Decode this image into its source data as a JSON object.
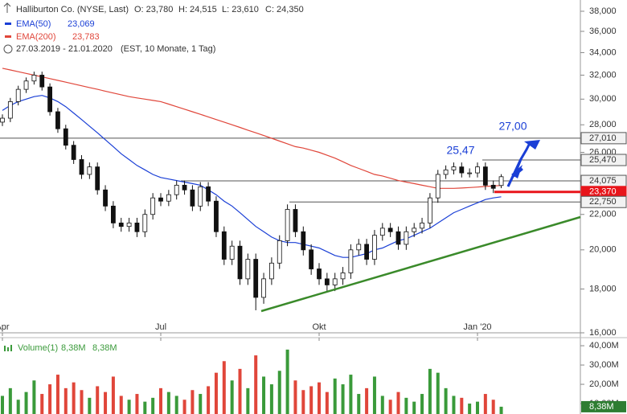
{
  "chart_data": [
    {
      "type": "candlestick",
      "title": "Halliburton Co. (NYSE, Last)",
      "info": [
        "O: 23,780",
        "H: 24,515",
        "L: 23,610",
        "C: 24,350"
      ],
      "period": "27.03.2019 - 21.01.2020",
      "period_note": "(EST, 10 Monate, 1 Tag)",
      "categories": [
        "Apr",
        null,
        null,
        null,
        null,
        null,
        null,
        null,
        null,
        null,
        null,
        null,
        null,
        null,
        null,
        null,
        null,
        null,
        null,
        null,
        "Jul",
        null,
        null,
        null,
        null,
        null,
        null,
        null,
        null,
        null,
        null,
        null,
        null,
        null,
        null,
        null,
        null,
        null,
        null,
        null,
        "Okt",
        null,
        null,
        null,
        null,
        null,
        null,
        null,
        null,
        null,
        null,
        null,
        null,
        null,
        null,
        null,
        null,
        null,
        null,
        null,
        "Jan '20",
        null,
        null,
        null
      ],
      "open": [
        28200,
        28500,
        29800,
        30800,
        31500,
        32000,
        31000,
        29000,
        27700,
        26500,
        25500,
        24500,
        25000,
        23500,
        22500,
        21500,
        21300,
        21500,
        21000,
        22000,
        23000,
        22800,
        23200,
        23800,
        23500,
        22500,
        23700,
        22800,
        21000,
        19500,
        20200,
        18500,
        19500,
        17600,
        18500,
        19300,
        20500,
        22300,
        21000,
        20000,
        19000,
        18500,
        18200,
        18500,
        18800,
        20000,
        20300,
        19500,
        20800,
        21200,
        21000,
        20300,
        21000,
        21200,
        21500,
        23000,
        24500,
        24800,
        25000,
        24600,
        24600,
        25000,
        23800,
        23780
      ],
      "high": [
        28800,
        30100,
        31100,
        31800,
        32300,
        32300,
        31300,
        29300,
        28000,
        26800,
        25800,
        25300,
        25300,
        23800,
        22800,
        21800,
        21800,
        21800,
        22300,
        23300,
        23300,
        23500,
        24100,
        24100,
        23800,
        24000,
        24000,
        23100,
        21300,
        20500,
        20500,
        19800,
        19800,
        18800,
        19600,
        20800,
        22600,
        22600,
        21300,
        20300,
        19300,
        18800,
        18800,
        19100,
        20300,
        20600,
        20600,
        21100,
        21500,
        21500,
        21300,
        21300,
        21500,
        21800,
        23300,
        24800,
        25100,
        25300,
        25300,
        24900,
        25300,
        25300,
        24100,
        24515
      ],
      "low": [
        27900,
        28200,
        29500,
        30500,
        31200,
        30700,
        28700,
        27400,
        26200,
        25200,
        24200,
        24200,
        23200,
        22200,
        21200,
        21000,
        21000,
        20700,
        20700,
        21700,
        22500,
        22500,
        22900,
        23200,
        22200,
        22200,
        22500,
        20700,
        19200,
        19200,
        18200,
        18200,
        17000,
        17300,
        18200,
        19000,
        20200,
        20700,
        19700,
        18700,
        18200,
        17900,
        17900,
        18200,
        18500,
        19700,
        19200,
        19200,
        20500,
        20700,
        20000,
        20000,
        20700,
        20900,
        21200,
        22700,
        24200,
        24500,
        24300,
        24300,
        24300,
        23500,
        23300,
        23610
      ],
      "close": [
        28500,
        29800,
        30800,
        31500,
        32000,
        31000,
        29000,
        27700,
        26500,
        25500,
        24500,
        25000,
        23500,
        22500,
        21500,
        21300,
        21500,
        21000,
        22000,
        23000,
        22800,
        23200,
        23800,
        23500,
        22500,
        23700,
        22800,
        21000,
        19500,
        20200,
        18500,
        19500,
        17600,
        18500,
        19300,
        20500,
        22300,
        21000,
        20000,
        19000,
        18500,
        18200,
        18500,
        18800,
        20000,
        20300,
        19500,
        20800,
        21200,
        21000,
        20300,
        21000,
        21200,
        21500,
        23000,
        24500,
        24800,
        25000,
        24600,
        24600,
        25000,
        23800,
        23600,
        24350
      ],
      "series": [
        {
          "name": "EMA(50)",
          "color": "#1a3fd6",
          "value_label": "23,069",
          "values": [
            29100,
            29500,
            29800,
            30000,
            30200,
            30300,
            30100,
            29800,
            29400,
            28900,
            28400,
            27900,
            27400,
            26900,
            26400,
            25900,
            25500,
            25100,
            24800,
            24500,
            24300,
            24200,
            24100,
            24000,
            23900,
            23800,
            23500,
            23200,
            22800,
            22500,
            22100,
            21700,
            21300,
            21000,
            20700,
            20500,
            20400,
            20400,
            20300,
            20200,
            20100,
            19900,
            19700,
            19600,
            19600,
            19700,
            19800,
            20000,
            20100,
            20300,
            20500,
            20600,
            20800,
            21000,
            21200,
            21500,
            21800,
            22100,
            22300,
            22500,
            22700,
            22900,
            23000,
            23069
          ]
        },
        {
          "name": "EMA(200)",
          "color": "#e0463a",
          "value_label": "23,783",
          "values": [
            32600,
            32450,
            32300,
            32150,
            32000,
            31850,
            31700,
            31550,
            31400,
            31250,
            31100,
            30950,
            30800,
            30650,
            30500,
            30350,
            30200,
            30100,
            30000,
            29900,
            29800,
            29600,
            29400,
            29200,
            29000,
            28800,
            28600,
            28400,
            28200,
            28000,
            27800,
            27600,
            27400,
            27200,
            27000,
            26800,
            26600,
            26400,
            26300,
            26150,
            26000,
            25800,
            25600,
            25350,
            25100,
            24900,
            24700,
            24500,
            24400,
            24250,
            24100,
            24000,
            23900,
            23800,
            23700,
            23600,
            23600,
            23600,
            23620,
            23650,
            23680,
            23720,
            23750,
            23783
          ]
        }
      ],
      "levels": [
        {
          "value": 27010,
          "label": "27,010",
          "color": "#555555"
        },
        {
          "value": 25470,
          "label": "25,470",
          "color": "#555555"
        },
        {
          "value": 24075,
          "label": "24,075",
          "color": "#555555"
        },
        {
          "value": 23370,
          "label": "23,370",
          "color": "#e8151b"
        },
        {
          "value": 22750,
          "label": "22,750",
          "color": "#555555"
        }
      ],
      "annotations": [
        "25,47",
        "27,00"
      ],
      "log_scale": true,
      "ylim": [
        16000,
        38000
      ],
      "yticks": [
        {
          "value": 16000,
          "label": "16,000"
        },
        {
          "value": 18000,
          "label": "18,000"
        },
        {
          "value": 20000,
          "label": "20,000"
        },
        {
          "value": 22000,
          "label": "22,000"
        },
        {
          "value": 24000,
          "label": "24,000"
        },
        {
          "value": 26000,
          "label": "26,000"
        },
        {
          "value": 28000,
          "label": "28,000"
        },
        {
          "value": 30000,
          "label": "30,000"
        },
        {
          "value": 32000,
          "label": "32,000"
        },
        {
          "value": 34000,
          "label": "34,000"
        },
        {
          "value": 36000,
          "label": "36,000"
        },
        {
          "value": 38000,
          "label": "38,000"
        }
      ]
    },
    {
      "type": "bar",
      "title": "Volume(1)",
      "info": [
        "8,38M",
        "8,38M"
      ],
      "last_label": "8,38M",
      "up_color": "#3a9a3a",
      "down_color": "#e0463a",
      "values": [
        14,
        18,
        12,
        16,
        22,
        15,
        20,
        25,
        18,
        21,
        17,
        13,
        19,
        16,
        24,
        14,
        12,
        15,
        11,
        13,
        18,
        16,
        14,
        12,
        17,
        15,
        19,
        26,
        32,
        22,
        28,
        18,
        35,
        24,
        20,
        27,
        38,
        22,
        17,
        19,
        21,
        16,
        23,
        20,
        25,
        15,
        18,
        24,
        14,
        12,
        16,
        13,
        11,
        15,
        28,
        26,
        18,
        14,
        13,
        10,
        11,
        15,
        12,
        8.38
      ],
      "ylim": [
        4.6,
        44.2
      ],
      "yticks": [
        {
          "value": 10,
          "label": "10,00M"
        },
        {
          "value": 20,
          "label": "20,00M"
        },
        {
          "value": 30,
          "label": "30,00M"
        },
        {
          "value": 40,
          "label": "40,00M"
        }
      ]
    }
  ]
}
